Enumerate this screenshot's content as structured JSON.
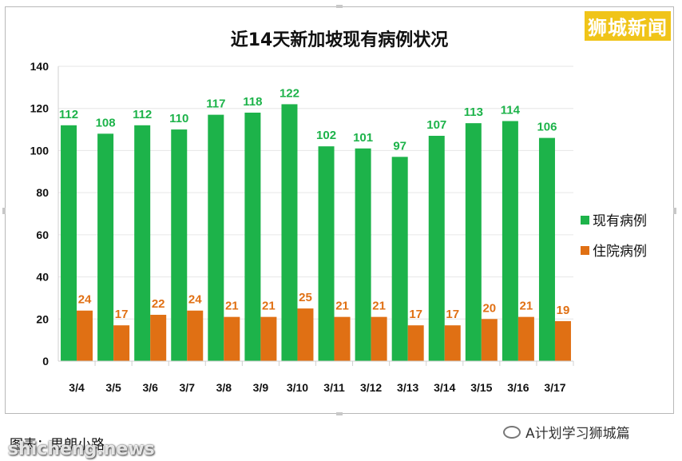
{
  "brand": "狮城新闻",
  "credit": "图表：思朗小路",
  "watermark": "shicheng.news",
  "wechat": "A计划学习狮城篇",
  "colors": {
    "active": "#1db34a",
    "hospital": "#e07014"
  },
  "chart_data": {
    "type": "bar",
    "title": "近14天新加坡现有病例状况",
    "categories": [
      "3/4",
      "3/5",
      "3/6",
      "3/7",
      "3/8",
      "3/9",
      "3/10",
      "3/11",
      "3/12",
      "3/13",
      "3/14",
      "3/15",
      "3/16",
      "3/17"
    ],
    "series": [
      {
        "name": "现有病例",
        "values": [
          112,
          108,
          112,
          110,
          117,
          118,
          122,
          102,
          101,
          97,
          107,
          113,
          114,
          106
        ]
      },
      {
        "name": "住院病例",
        "values": [
          24,
          17,
          22,
          24,
          21,
          21,
          25,
          21,
          21,
          17,
          17,
          20,
          21,
          19
        ]
      }
    ],
    "ylim": [
      0,
      140
    ],
    "yticks": [
      0,
      20,
      40,
      60,
      80,
      100,
      120,
      140
    ],
    "legend_position": "right",
    "grid": true
  }
}
